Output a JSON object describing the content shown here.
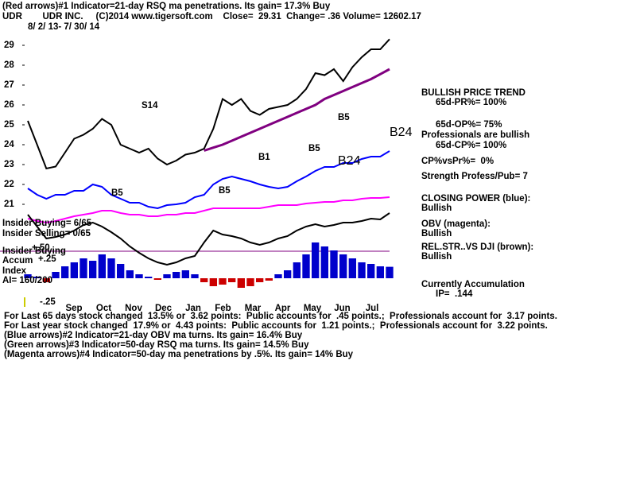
{
  "chart_data": {
    "type": "line",
    "title": "(Red arrows)#1 Indicator=21-day RSQ ma penetrations. Its gain= 17.3% Buy",
    "subtitle": "UDR        UDR INC.     (C)2014 www.tigersoft.com    Close=  29.31  Change= .36 Volume= 12602.17",
    "date_range": "8/ 2/ 13- 7/ 30/ 14",
    "months": [
      "Sep",
      "Oct",
      "Nov",
      "Dec",
      "Jan",
      "Feb",
      "Mar",
      "Apr",
      "May",
      "Jun",
      "Jul"
    ],
    "ylim": [
      16,
      30
    ],
    "yticks": [
      21,
      22,
      23,
      24,
      25,
      26,
      27,
      28,
      29
    ],
    "series": [
      {
        "color": "#000000",
        "values": [
          25.2,
          24.0,
          22.8,
          22.9,
          23.6,
          24.3,
          24.5,
          24.8,
          25.3,
          25.0,
          24.0,
          23.8,
          23.6,
          23.8,
          23.3,
          23.0,
          23.2,
          23.5,
          23.6,
          23.8,
          24.8,
          26.3,
          26.0,
          26.3,
          25.7,
          25.5,
          25.8,
          25.9,
          26.0,
          26.3,
          26.8,
          27.6,
          27.5,
          27.8,
          27.2,
          27.9,
          28.4,
          28.8,
          28.8,
          29.31
        ]
      },
      {
        "color": "#800080",
        "values": [
          null,
          null,
          null,
          null,
          null,
          null,
          null,
          null,
          null,
          null,
          null,
          null,
          null,
          null,
          null,
          null,
          null,
          null,
          null,
          23.7,
          23.85,
          24.0,
          24.2,
          24.4,
          24.6,
          24.8,
          25.0,
          25.2,
          25.4,
          25.6,
          25.8,
          26.0,
          26.3,
          26.5,
          26.7,
          26.9,
          27.1,
          27.3,
          27.55,
          27.8
        ]
      },
      {
        "color": "#0000ff",
        "values": [
          21.8,
          21.48,
          21.28,
          21.48,
          21.48,
          21.68,
          21.68,
          22.0,
          21.88,
          21.48,
          21.28,
          21.08,
          21.08,
          20.88,
          20.8,
          20.96,
          21.0,
          21.08,
          21.36,
          21.48,
          22.0,
          22.28,
          22.4,
          22.28,
          22.16,
          22.0,
          21.88,
          21.8,
          21.88,
          22.16,
          22.4,
          22.68,
          22.88,
          22.88,
          23.08,
          23.08,
          23.28,
          23.4,
          23.4,
          23.68
        ]
      },
      {
        "color": "#ff00ff",
        "values": [
          20.28,
          20.16,
          20.08,
          20.16,
          20.28,
          20.4,
          20.48,
          20.56,
          20.68,
          20.68,
          20.56,
          20.48,
          20.48,
          20.4,
          20.4,
          20.48,
          20.48,
          20.56,
          20.56,
          20.68,
          20.8,
          20.8,
          20.8,
          20.8,
          20.8,
          20.8,
          20.88,
          20.96,
          20.96,
          20.96,
          21.04,
          21.08,
          21.12,
          21.12,
          21.2,
          21.2,
          21.28,
          21.32,
          21.32,
          21.36
        ]
      },
      {
        "color": "#000000",
        "values": [
          20.48,
          19.88,
          19.28,
          19.36,
          19.48,
          19.68,
          19.96,
          20.08,
          19.88,
          19.6,
          19.28,
          18.88,
          18.56,
          18.28,
          18.08,
          17.96,
          18.08,
          18.28,
          18.4,
          19.08,
          19.68,
          19.48,
          19.4,
          19.28,
          19.08,
          18.96,
          19.08,
          19.28,
          19.4,
          19.68,
          19.88,
          20.0,
          19.88,
          19.96,
          20.08,
          20.08,
          20.16,
          20.28,
          20.24,
          20.56
        ]
      }
    ],
    "accumulation": {
      "ylim": [
        -0.32,
        0.5
      ],
      "pos_color": "#0000cc",
      "neg_color": "#cc0000",
      "values": [
        0.05,
        0.02,
        -0.05,
        0.08,
        0.15,
        0.2,
        0.25,
        0.22,
        0.3,
        0.25,
        0.18,
        0.1,
        0.05,
        0.02,
        -0.02,
        0.05,
        0.08,
        0.1,
        0.05,
        -0.05,
        -0.1,
        -0.08,
        -0.05,
        -0.12,
        -0.1,
        -0.05,
        -0.03,
        0.05,
        0.1,
        0.2,
        0.3,
        0.45,
        0.4,
        0.35,
        0.3,
        0.25,
        0.2,
        0.18,
        0.15,
        0.144
      ]
    },
    "annotations": [
      "S14",
      "B5",
      "B5",
      "B1",
      "B5",
      "B5",
      "B24",
      "B24"
    ]
  },
  "panel": [
    "BULLISH PRICE TREND",
    "65d-PR%= 100%",
    "65d-OP%= 75%",
    "Professionals are bullish",
    "65d-CP%= 100%",
    "CP%vsPr%=  0%",
    "Strength Profess/Pub= 7",
    "CLOSING POWER (blue):",
    "Bullish",
    "OBV (magenta):",
    "Bullish",
    "REL.STR..VS DJI (brown):",
    "Bullish",
    "Currently Accumulation",
    "IP=  .144"
  ],
  "insider": [
    "Insider Buying= 6/65",
    "Insider Selling= 0/65",
    "Insider Buying",
    "Accum",
    "Index",
    "AI= 160/200"
  ],
  "accum_scale": [
    "+.50",
    "+.25",
    "-.25"
  ],
  "footer": [
    "For Last 65 days stock changed  13.5% or  3.62 points:  Public accounts for  .45 points.;  Professionals account for  3.17 points.",
    "For Last year stock changed  17.9% or  4.43 points:  Public accounts for  1.21 points.;  Professionals account for  3.22 points.",
    "(Blue arrows)#2 Indicator=21-day OBV ma turns. Its gain= 16.4% Buy",
    "(Green arrows)#3 Indicator=50-day RSQ ma turns. Its gain= 14.5% Buy",
    "(Magenta arrows)#4 Indicator=50-day ma penetrations by .5%. Its gain= 14% Buy"
  ]
}
